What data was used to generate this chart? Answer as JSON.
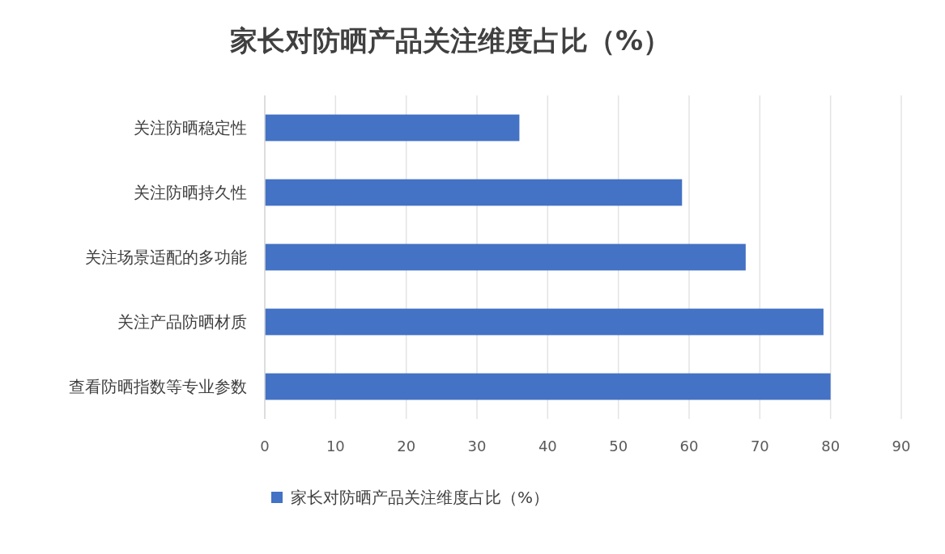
{
  "chart_data": {
    "type": "bar",
    "orientation": "horizontal",
    "title": "家长对防晒产品关注维度占比（%）",
    "categories": [
      "关注防晒稳定性",
      "关注防晒持久性",
      "关注场景适配的多功能",
      "关注产品防晒材质",
      "查看防晒指数等专业参数"
    ],
    "series": [
      {
        "name": "家长对防晒产品关注维度占比（%）",
        "color": "#4472c4",
        "values": [
          36,
          59,
          68,
          79,
          80
        ]
      }
    ],
    "xlim": [
      0,
      90
    ],
    "xticks": [
      0,
      10,
      20,
      30,
      40,
      50,
      60,
      70,
      80,
      90
    ],
    "grid": "x",
    "legend": "bottom"
  }
}
